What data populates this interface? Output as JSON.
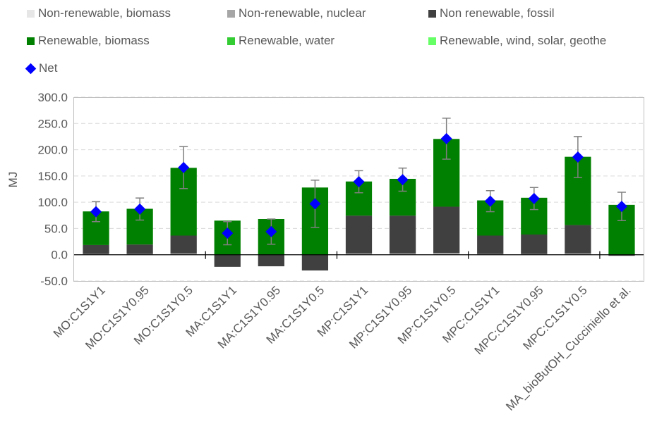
{
  "chart_data": {
    "type": "bar",
    "stacked": true,
    "ylabel": "MJ",
    "ylim": [
      -50,
      300
    ],
    "yticks": [
      "-50.0",
      "0.0",
      "50.0",
      "100.0",
      "150.0",
      "200.0",
      "250.0",
      "300.0"
    ],
    "categories": [
      "MO:C1S1Y1",
      "MO:C1S1Y0.95",
      "MO:C1S1Y0.5",
      "MA:C1S1Y1",
      "MA:C1S1Y0.95",
      "MA:C1S1Y0.5",
      "MP:C1S1Y1",
      "MP:C1S1Y0.95",
      "MP:C1S1Y0.5",
      "MPC:C1S1Y1",
      "MPC:C1S1Y0.95",
      "MPC:C1S1Y0.5",
      "MA_bioButOH_Cucciniello et al."
    ],
    "group_separators_after": [
      2,
      5,
      8,
      11
    ],
    "series": [
      {
        "name": "Non-renewable, biomass",
        "color": "#e6e6e6",
        "values": [
          0.5,
          0.5,
          0.5,
          0,
          0,
          0,
          0.5,
          0.5,
          0.5,
          0.5,
          0.5,
          0.5,
          0
        ]
      },
      {
        "name": "Non-renewable, nuclear",
        "color": "#a6a6a6",
        "values": [
          1,
          1,
          2,
          0,
          0,
          0,
          2,
          2,
          3,
          1,
          1,
          2,
          0
        ]
      },
      {
        "name": "Non renewable, fossil",
        "color": "#404040",
        "values": [
          17,
          18,
          34,
          -23,
          -22,
          -30,
          72,
          72,
          88,
          35,
          37,
          54,
          -2
        ]
      },
      {
        "name": "Renewable, biomass",
        "color": "#008000",
        "values": [
          64,
          68,
          129,
          65,
          68,
          128,
          65,
          70,
          129,
          67,
          70,
          130,
          95
        ]
      },
      {
        "name": "Renewable, water",
        "color": "#33cc33",
        "values": [
          0,
          0,
          0,
          0,
          0,
          0,
          0,
          0,
          0,
          0,
          0,
          0,
          0
        ]
      },
      {
        "name": "Renewable, wind, solar, geothe",
        "color": "#66ff66",
        "values": [
          0,
          0,
          0,
          0,
          0,
          0,
          0,
          0,
          0,
          0,
          0,
          0,
          0
        ]
      }
    ],
    "net": {
      "name": "Net",
      "color": "#0000ff",
      "values": [
        82,
        87,
        166,
        41,
        44,
        97,
        139,
        143,
        221,
        102,
        107,
        186,
        92
      ],
      "error": [
        19,
        21,
        40,
        22,
        24,
        45,
        21,
        22,
        39,
        20,
        21,
        39,
        27
      ]
    },
    "legend_position": "top",
    "grid": "horizontal-dashed"
  }
}
